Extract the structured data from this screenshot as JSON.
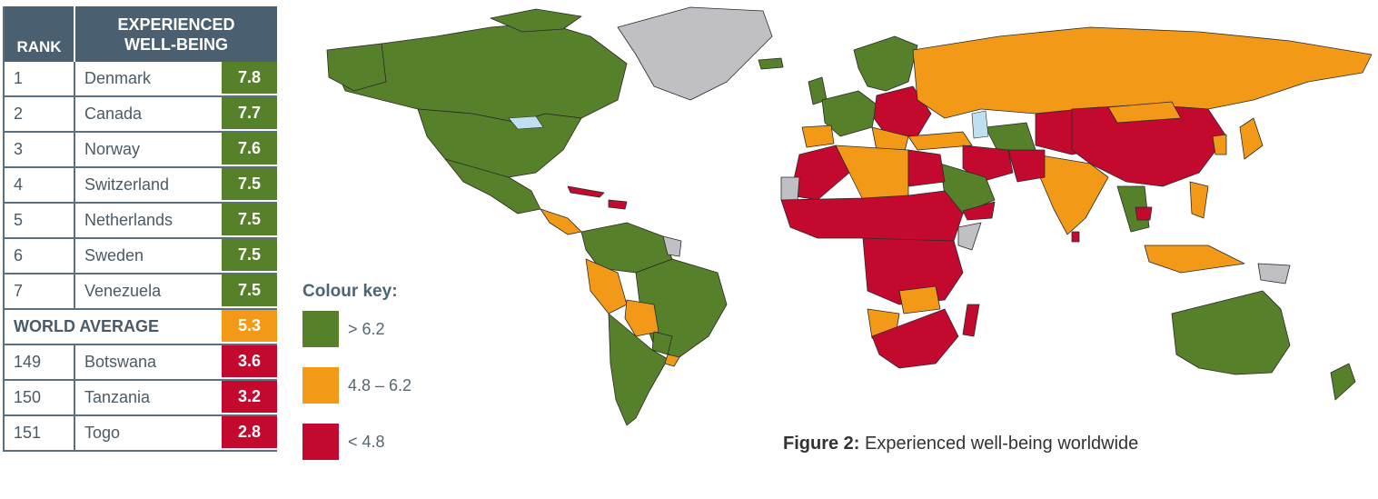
{
  "table": {
    "header_rank": "RANK",
    "header_ewb_line1": "EXPERIENCED",
    "header_ewb_line2": "WELL-BEING",
    "top_rows": [
      {
        "rank": "1",
        "country": "Denmark",
        "score": "7.8",
        "color": "#56802a"
      },
      {
        "rank": "2",
        "country": "Canada",
        "score": "7.7",
        "color": "#56802a"
      },
      {
        "rank": "3",
        "country": "Norway",
        "score": "7.6",
        "color": "#56802a"
      },
      {
        "rank": "4",
        "country": "Switzerland",
        "score": "7.5",
        "color": "#56802a"
      },
      {
        "rank": "5",
        "country": "Netherlands",
        "score": "7.5",
        "color": "#56802a"
      },
      {
        "rank": "6",
        "country": "Sweden",
        "score": "7.5",
        "color": "#56802a"
      },
      {
        "rank": "7",
        "country": "Venezuela",
        "score": "7.5",
        "color": "#56802a"
      }
    ],
    "average": {
      "label": "WORLD AVERAGE",
      "score": "5.3",
      "color": "#f29a18"
    },
    "bottom_rows": [
      {
        "rank": "149",
        "country": "Botswana",
        "score": "3.6",
        "color": "#c3092e"
      },
      {
        "rank": "150",
        "country": "Tanzania",
        "score": "3.2",
        "color": "#c3092e"
      },
      {
        "rank": "151",
        "country": "Togo",
        "score": "2.8",
        "color": "#c3092e"
      }
    ]
  },
  "legend": {
    "title": "Colour key:",
    "items": [
      {
        "label": "> 6.2",
        "color": "#56802a"
      },
      {
        "label": "4.8 – 6.2",
        "color": "#f29a18"
      },
      {
        "label": "< 4.8",
        "color": "#c3092e"
      }
    ]
  },
  "caption": {
    "prefix": "Figure 2:",
    "text": " Experienced well-being worldwide"
  },
  "colors": {
    "high": "#56802a",
    "mid": "#f29a18",
    "low": "#c3092e",
    "no_data": "#c0c0c4",
    "water": "#bfe0f0",
    "border": "#2a2a2a"
  }
}
